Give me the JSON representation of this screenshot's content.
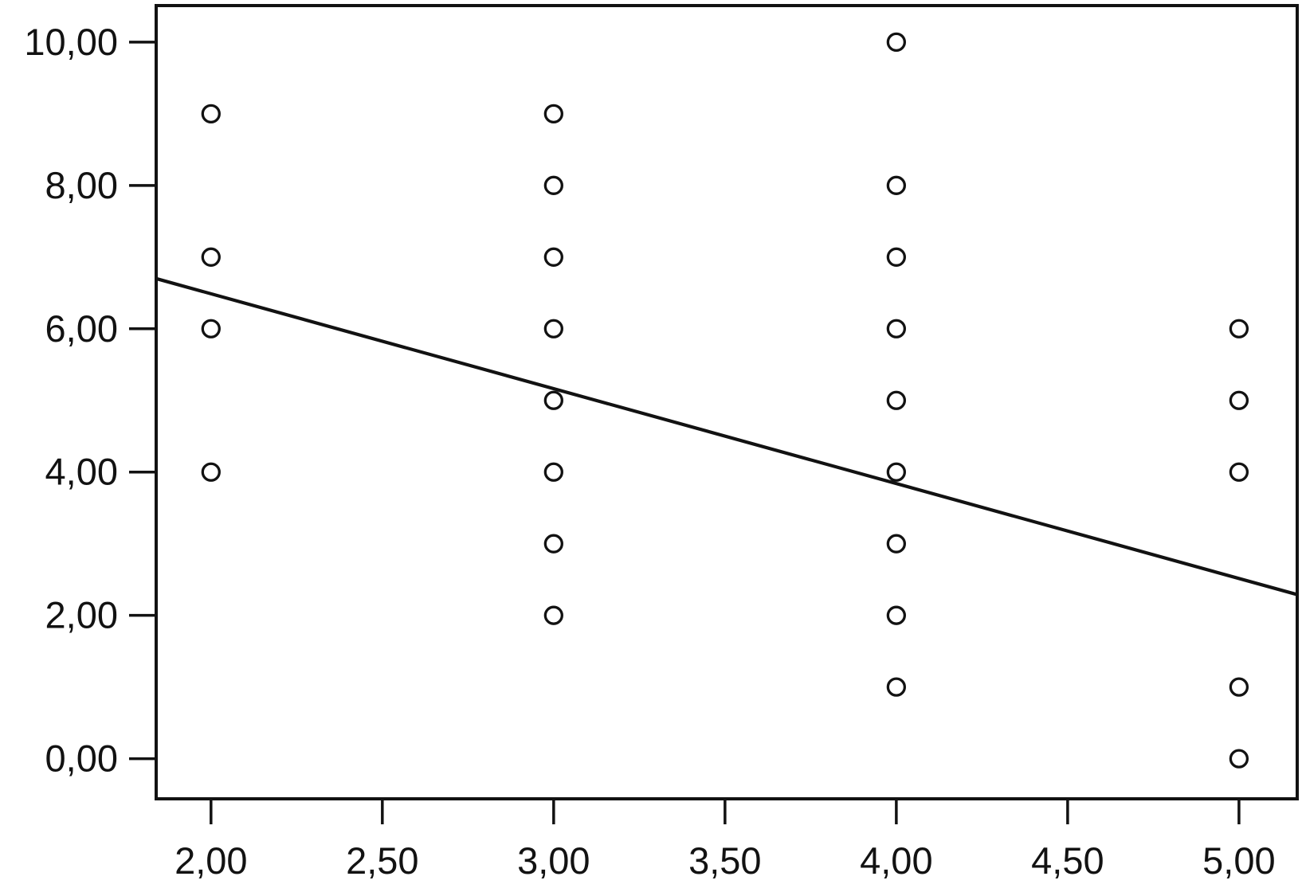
{
  "chart_data": {
    "type": "scatter",
    "title": "",
    "xlabel": "",
    "ylabel": "",
    "decimal_separator": ",",
    "grid": false,
    "legend_position": "none",
    "marker_style": "open-circle",
    "x_tick_values": [
      2.0,
      2.5,
      3.0,
      3.5,
      4.0,
      4.5,
      5.0
    ],
    "x_tick_labels": [
      "2,00",
      "2,50",
      "3,00",
      "3,50",
      "4,00",
      "4,50",
      "5,00"
    ],
    "y_tick_values": [
      0,
      2,
      4,
      6,
      8,
      10
    ],
    "y_tick_labels": [
      "0,00",
      "2,00",
      "4,00",
      "6,00",
      "8,00",
      "10,00"
    ],
    "xlim": [
      1.84,
      5.17
    ],
    "ylim": [
      -0.56,
      10.51
    ],
    "points": [
      [
        2,
        9
      ],
      [
        2,
        7
      ],
      [
        2,
        6
      ],
      [
        2,
        4
      ],
      [
        3,
        9
      ],
      [
        3,
        8
      ],
      [
        3,
        7
      ],
      [
        3,
        6
      ],
      [
        3,
        5
      ],
      [
        3,
        4
      ],
      [
        3,
        3
      ],
      [
        3,
        2
      ],
      [
        4,
        10
      ],
      [
        4,
        8
      ],
      [
        4,
        7
      ],
      [
        4,
        6
      ],
      [
        4,
        5
      ],
      [
        4,
        4
      ],
      [
        4,
        3
      ],
      [
        4,
        2
      ],
      [
        4,
        1
      ],
      [
        5,
        6
      ],
      [
        5,
        5
      ],
      [
        5,
        4
      ],
      [
        5,
        1
      ],
      [
        5,
        0
      ]
    ],
    "fit_line": {
      "x1": 1.84,
      "y1": 6.7,
      "x2": 5.17,
      "y2": 2.29,
      "slope": -1.33,
      "intercept": 9.14
    },
    "colors": {
      "ink": "#121212",
      "background": "#ffffff"
    }
  }
}
